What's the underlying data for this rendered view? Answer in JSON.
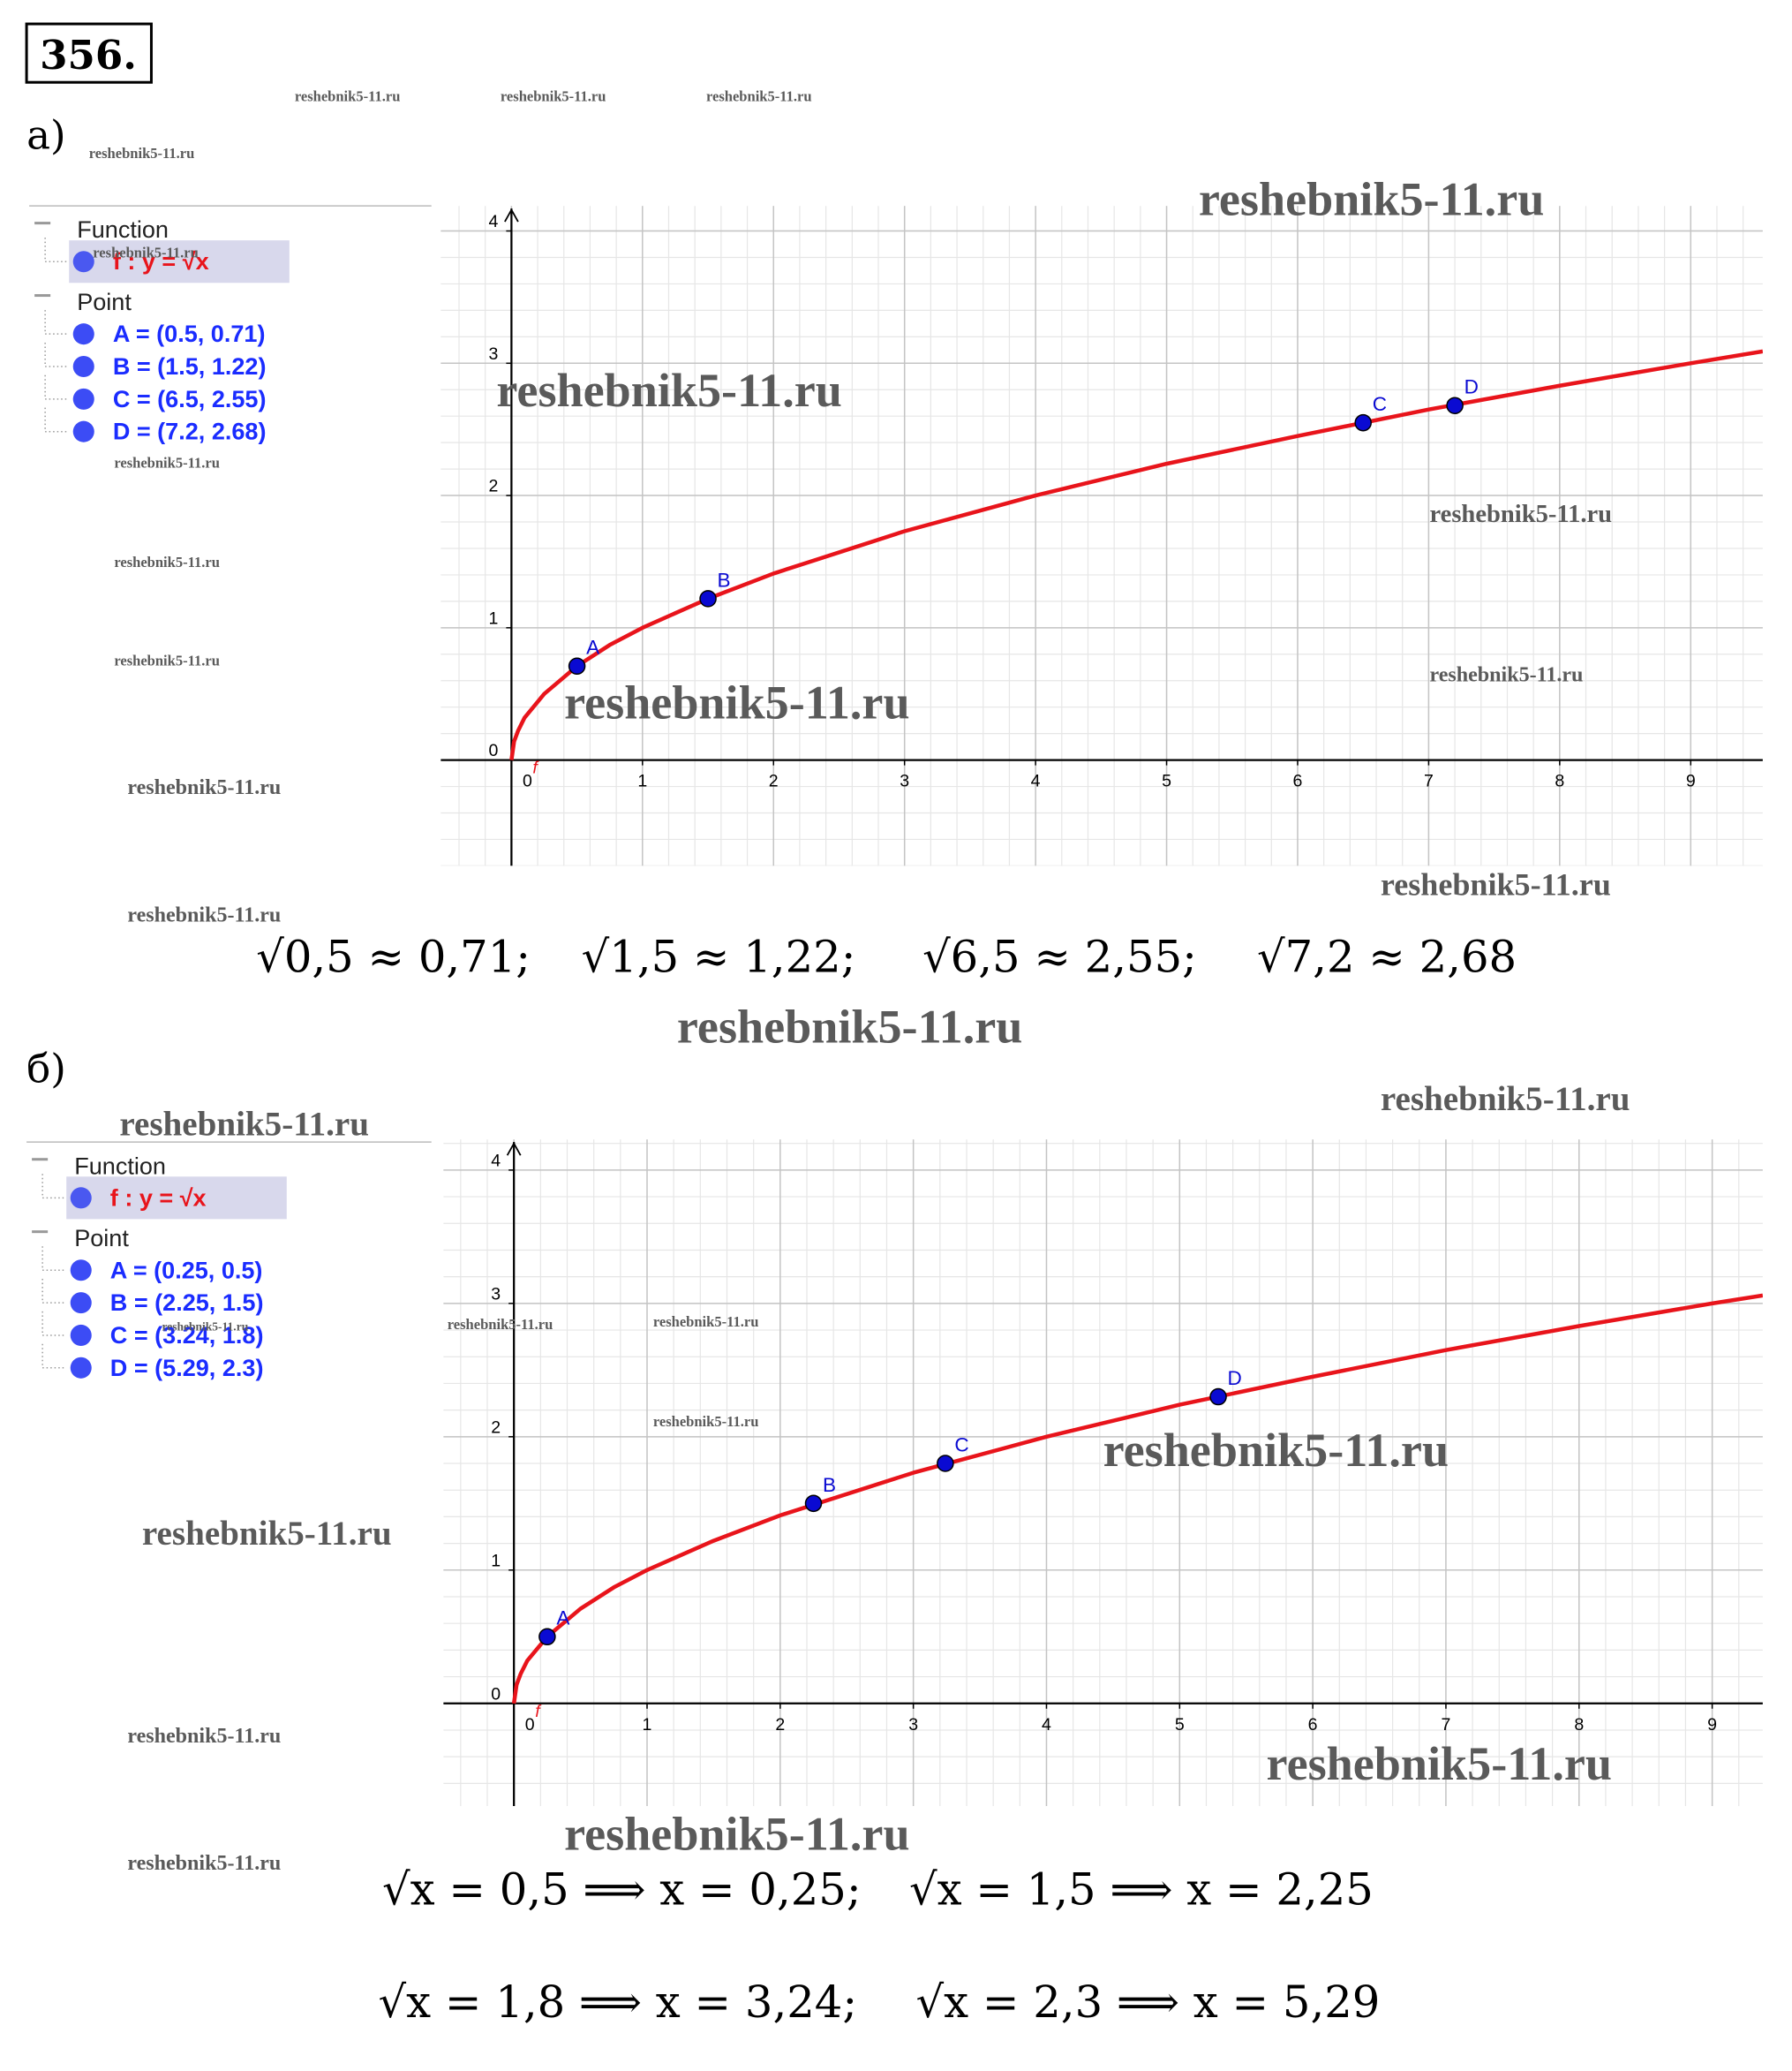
{
  "problem_number": "356.",
  "watermark": "reshebnik5-11.ru",
  "parts": [
    {
      "label": "а)",
      "algebra": [
        {
          "title": "Function",
          "items": [
            "f : y = √x"
          ]
        },
        {
          "title": "Point",
          "items": [
            "A = (0.5, 0.71)",
            "B = (1.5, 1.22)",
            "C = (6.5, 2.55)",
            "D = (7.2, 2.68)"
          ]
        }
      ],
      "formulas": [
        "√0,5 ≈ 0,71;",
        "√1,5 ≈ 1,22;",
        "√6,5 ≈ 2,55;",
        "√7,2 ≈ 2,68"
      ]
    },
    {
      "label": "б)",
      "algebra": [
        {
          "title": "Function",
          "items": [
            "f : y = √x"
          ]
        },
        {
          "title": "Point",
          "items": [
            "A = (0.25, 0.5)",
            "B = (2.25, 1.5)",
            "C = (3.24, 1.8)",
            "D = (5.29, 2.3)"
          ]
        }
      ],
      "formulas": [
        "√x = 0,5 ⟹ x = 0,25;",
        "√x = 1,5 ⟹ x = 2,25",
        "√x = 1,8 ⟹ x = 3,24;",
        "√x = 2,3 ⟹ x = 5,29"
      ]
    }
  ],
  "chart_data": [
    {
      "type": "line",
      "grid": true,
      "xlim": [
        -0.54,
        9.55
      ],
      "ylim": [
        -0.8,
        4.19
      ],
      "xticks": [
        0,
        1,
        2,
        3,
        4,
        5,
        6,
        7,
        8,
        9
      ],
      "yticks": [
        0,
        1,
        2,
        3,
        4
      ],
      "series": [
        {
          "name": "f",
          "color": "#e8141b",
          "x": [
            0,
            0.02,
            0.05,
            0.1,
            0.25,
            0.5,
            0.75,
            1,
            1.5,
            2,
            3,
            4,
            5,
            6,
            7,
            8,
            9,
            9.55
          ],
          "values": [
            0,
            0.14,
            0.22,
            0.32,
            0.5,
            0.71,
            0.87,
            1,
            1.22,
            1.41,
            1.73,
            2,
            2.24,
            2.45,
            2.65,
            2.83,
            3,
            3.09
          ]
        }
      ],
      "point_color": "#0a0ad2",
      "points": [
        {
          "name": "A",
          "x": 0.5,
          "y": 0.71
        },
        {
          "name": "B",
          "x": 1.5,
          "y": 1.22
        },
        {
          "name": "C",
          "x": 6.5,
          "y": 2.55
        },
        {
          "name": "D",
          "x": 7.2,
          "y": 2.68
        }
      ]
    },
    {
      "type": "line",
      "grid": true,
      "xlim": [
        -0.53,
        9.38
      ],
      "ylim": [
        -0.77,
        4.23
      ],
      "xticks": [
        0,
        1,
        2,
        3,
        4,
        5,
        6,
        7,
        8,
        9
      ],
      "yticks": [
        0,
        1,
        2,
        3,
        4
      ],
      "series": [
        {
          "name": "f",
          "color": "#e8141b",
          "x": [
            0,
            0.02,
            0.05,
            0.1,
            0.25,
            0.5,
            0.75,
            1,
            1.5,
            2,
            3,
            4,
            5,
            6,
            7,
            8,
            9,
            9.38
          ],
          "values": [
            0,
            0.14,
            0.22,
            0.32,
            0.5,
            0.71,
            0.87,
            1,
            1.22,
            1.41,
            1.73,
            2,
            2.24,
            2.45,
            2.65,
            2.83,
            3,
            3.06
          ]
        }
      ],
      "point_color": "#0a0ad2",
      "points": [
        {
          "name": "A",
          "x": 0.25,
          "y": 0.5
        },
        {
          "name": "B",
          "x": 2.25,
          "y": 1.5
        },
        {
          "name": "C",
          "x": 3.24,
          "y": 1.8
        },
        {
          "name": "D",
          "x": 5.29,
          "y": 2.3
        }
      ]
    }
  ]
}
